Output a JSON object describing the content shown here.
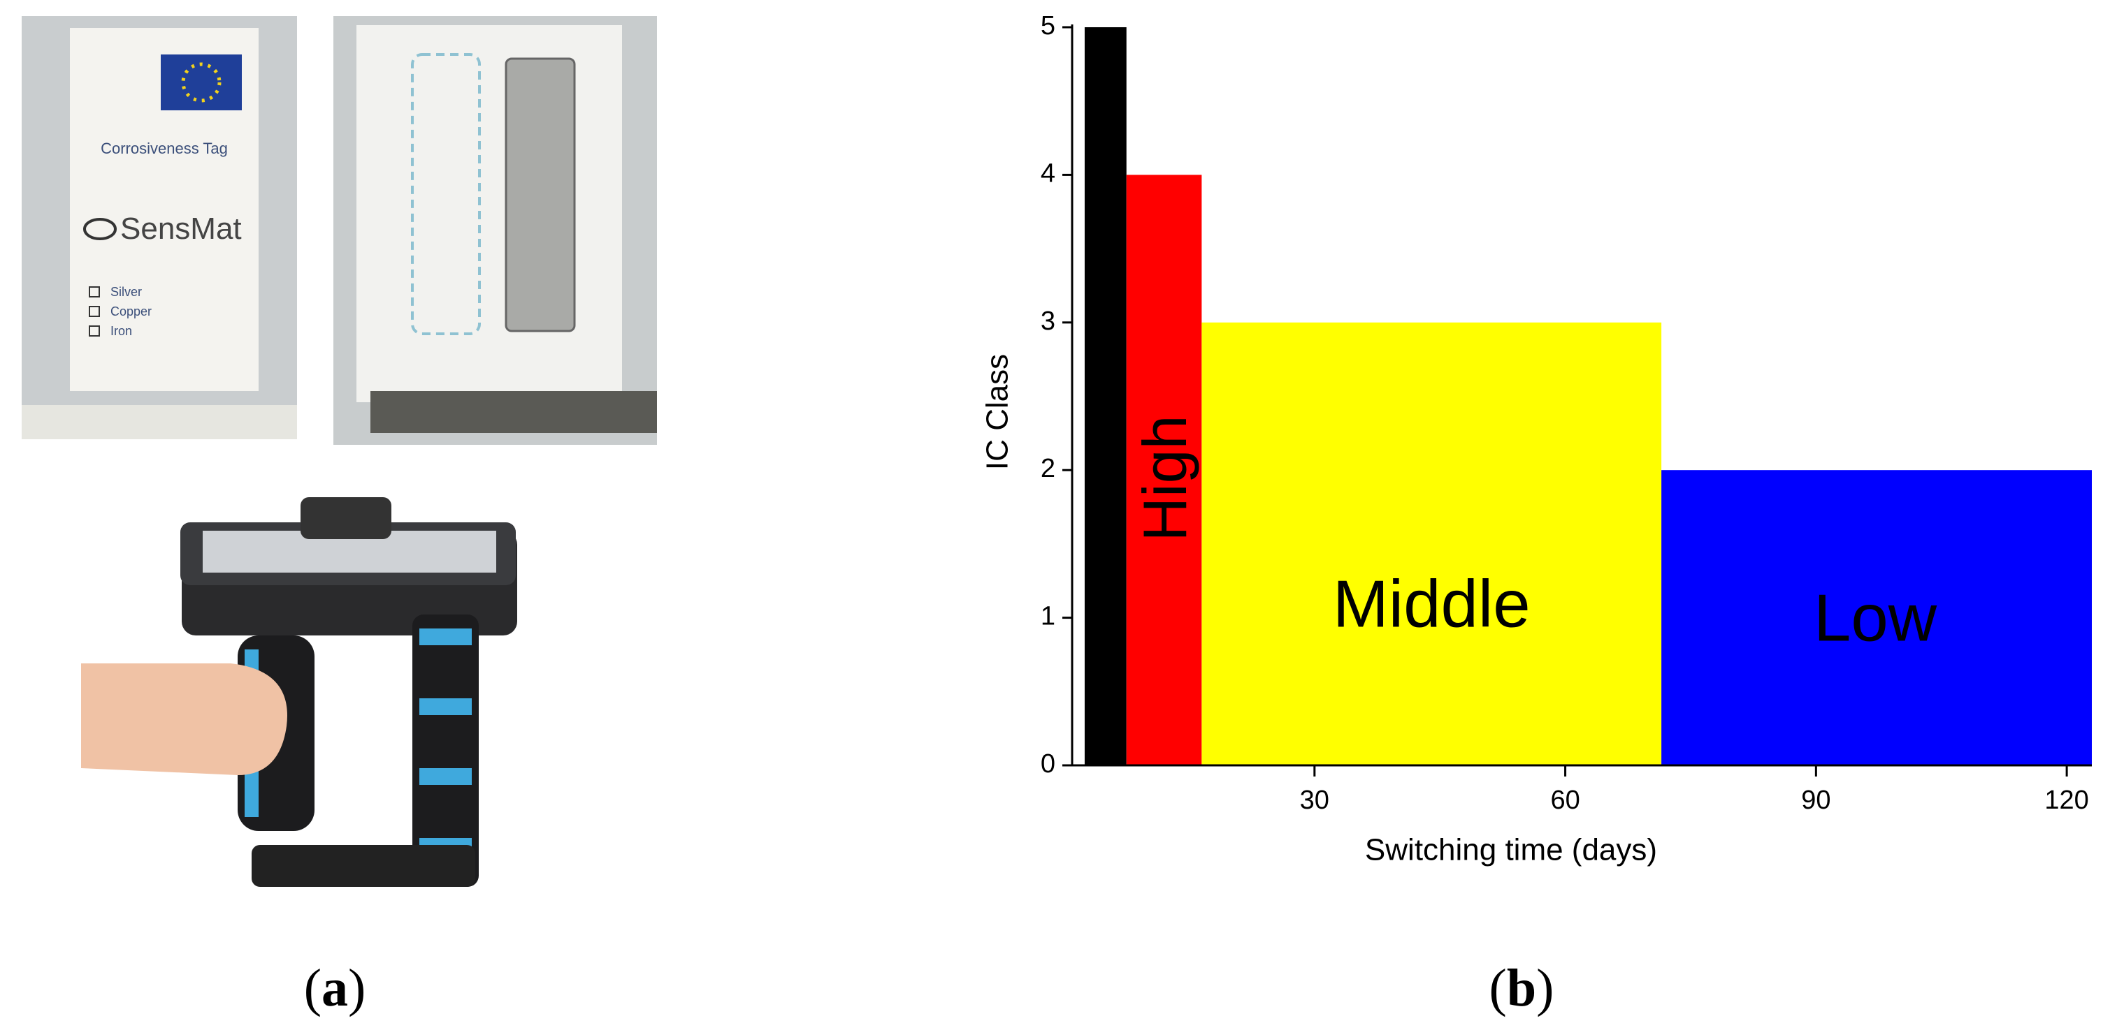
{
  "panel_a": {
    "label": "a",
    "tag_card": {
      "title": "Corrosiveness Tag",
      "brand": "SensMat",
      "options": [
        "Silver",
        "Copper",
        "Iron"
      ]
    }
  },
  "panel_b": {
    "label": "b"
  },
  "chart_data": {
    "type": "histogram",
    "xlabel": "Switching time (days)",
    "ylabel": "IC Class",
    "bins": [
      2.5,
      7.5,
      16.5,
      71.5,
      123
    ],
    "values": [
      5,
      4,
      3,
      2
    ],
    "colors": [
      "#000000",
      "#ff0000",
      "#ffff00",
      "#0000ff"
    ],
    "annotations": [
      "High",
      "Middle",
      "Low"
    ],
    "xlim": [
      1,
      123
    ],
    "xticks": [
      30,
      60,
      90,
      120
    ],
    "ylim": [
      0,
      5
    ],
    "yticks": [
      0,
      1,
      2,
      3,
      4,
      5
    ],
    "grid": false
  }
}
